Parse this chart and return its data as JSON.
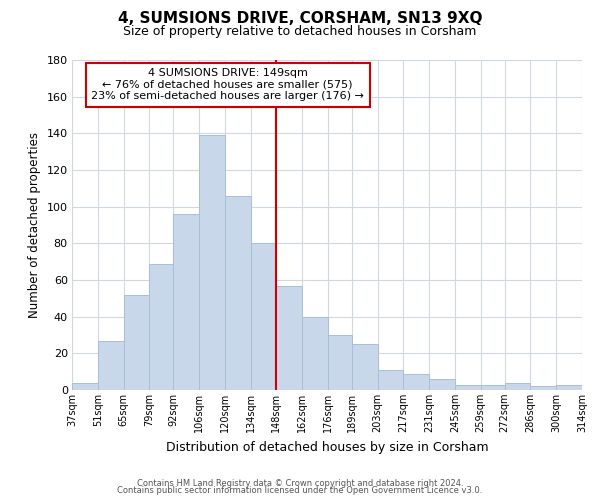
{
  "title": "4, SUMSIONS DRIVE, CORSHAM, SN13 9XQ",
  "subtitle": "Size of property relative to detached houses in Corsham",
  "xlabel": "Distribution of detached houses by size in Corsham",
  "ylabel": "Number of detached properties",
  "bar_color": "#c8d8ea",
  "bar_edgecolor": "#aabfd4",
  "vline_x": 148,
  "vline_color": "#cc0000",
  "annotation_title": "4 SUMSIONS DRIVE: 149sqm",
  "annotation_line1": "← 76% of detached houses are smaller (575)",
  "annotation_line2": "23% of semi-detached houses are larger (176) →",
  "bins": [
    37,
    51,
    65,
    79,
    92,
    106,
    120,
    134,
    148,
    162,
    176,
    189,
    203,
    217,
    231,
    245,
    259,
    272,
    286,
    300,
    314
  ],
  "counts": [
    4,
    27,
    52,
    69,
    96,
    139,
    106,
    80,
    57,
    40,
    30,
    25,
    11,
    9,
    6,
    3,
    3,
    4,
    2,
    3
  ],
  "xlim_left": 37,
  "xlim_right": 314,
  "ylim_top": 180,
  "yticks": [
    0,
    20,
    40,
    60,
    80,
    100,
    120,
    140,
    160,
    180
  ],
  "footer1": "Contains HM Land Registry data © Crown copyright and database right 2024.",
  "footer2": "Contains public sector information licensed under the Open Government Licence v3.0.",
  "background_color": "#ffffff",
  "plot_background": "#ffffff",
  "grid_color": "#d0d8e0"
}
